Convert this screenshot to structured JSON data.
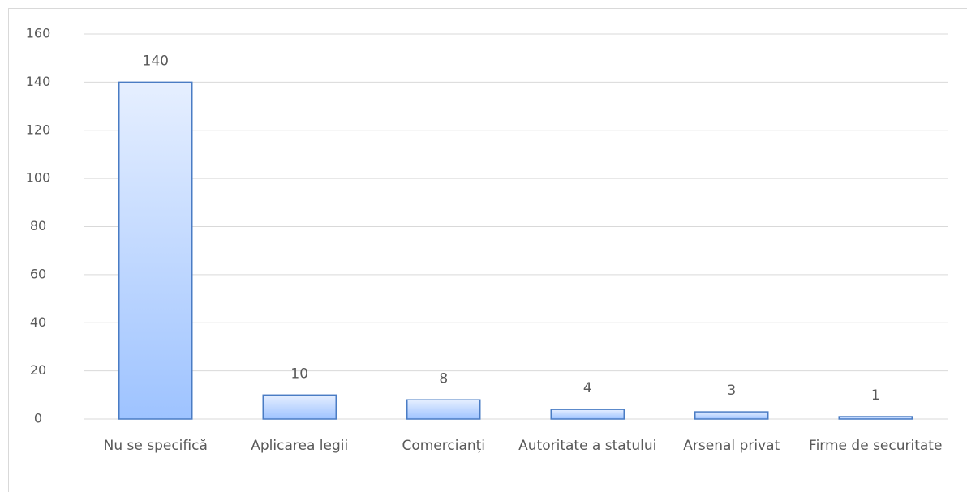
{
  "chart_data": {
    "type": "bar",
    "categories": [
      "Nu se specifică",
      "Aplicarea legii",
      "Comercianți",
      "Autoritate a statului",
      "Arsenal privat",
      "Firme de securitate"
    ],
    "values": [
      140,
      10,
      8,
      4,
      3,
      1
    ],
    "color": "#9ec3ff",
    "ylim": [
      0,
      160
    ],
    "yticks": [
      0,
      20,
      40,
      60,
      80,
      100,
      120,
      140,
      160
    ],
    "grid": true
  }
}
